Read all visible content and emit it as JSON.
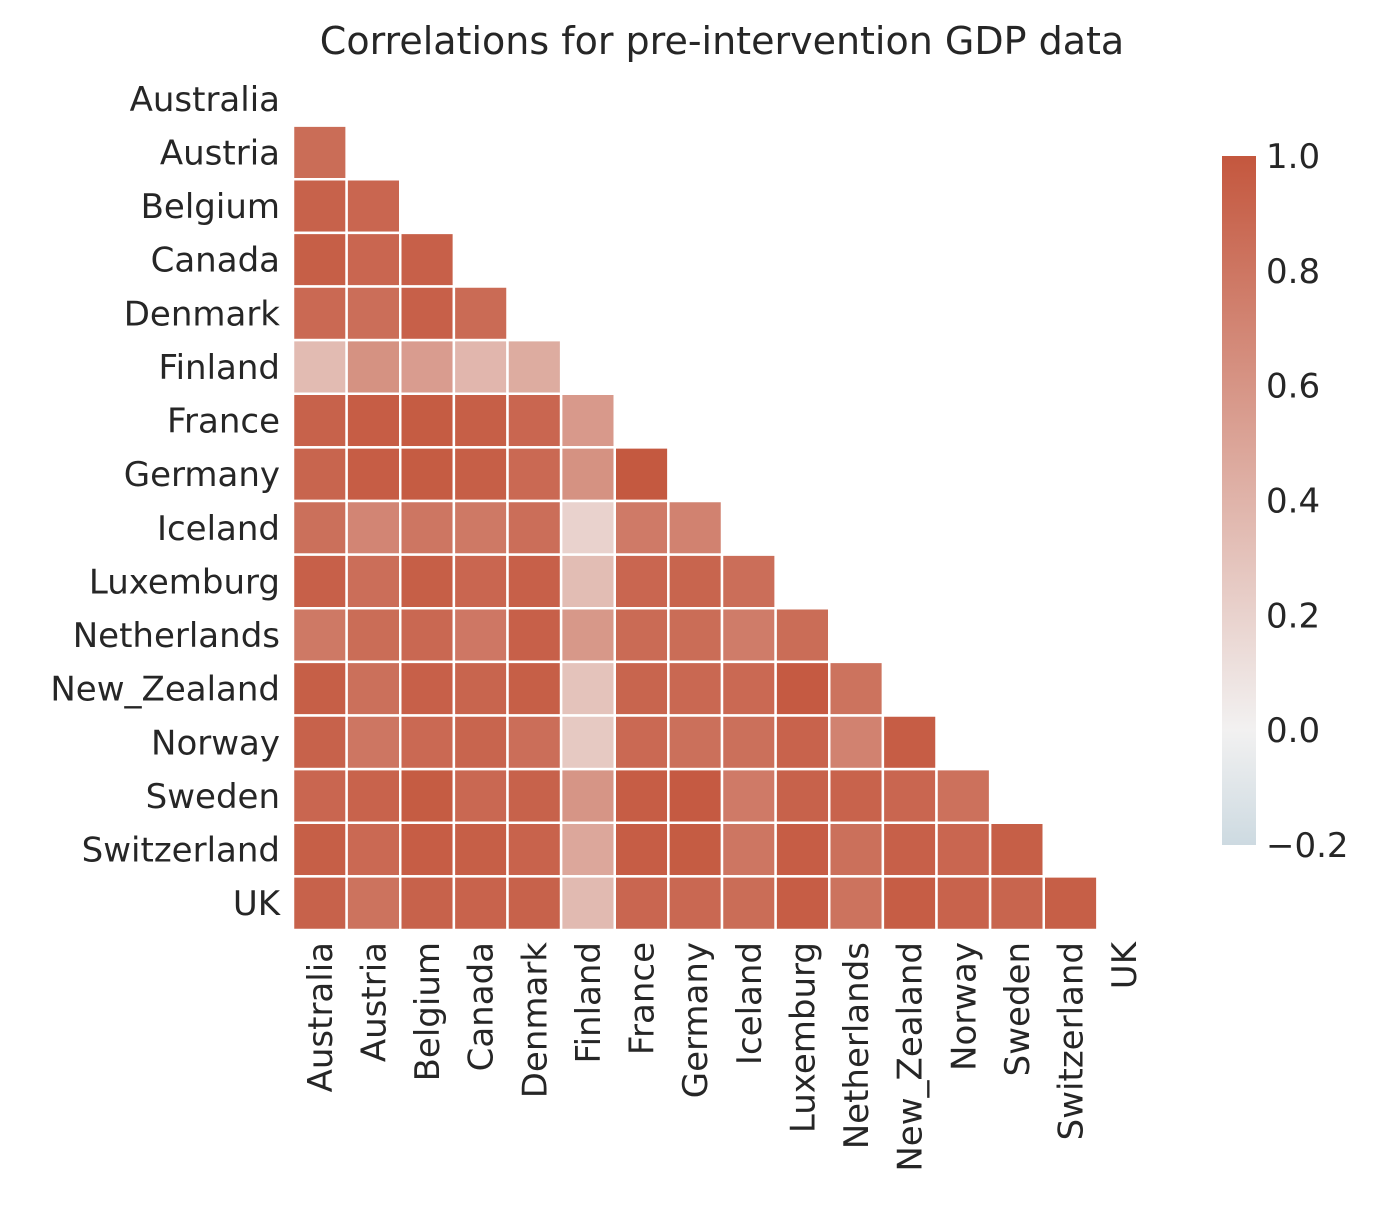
{
  "chart_data": {
    "type": "heatmap",
    "title": "Correlations for pre-intervention GDP data",
    "labels": [
      "Australia",
      "Austria",
      "Belgium",
      "Canada",
      "Denmark",
      "Finland",
      "France",
      "Germany",
      "Iceland",
      "Luxemburg",
      "Netherlands",
      "New_Zealand",
      "Norway",
      "Sweden",
      "Switzerland",
      "UK"
    ],
    "mask": "upper-triangle-including-diagonal",
    "lower_triangle": [
      [],
      [
        0.86
      ],
      [
        0.93,
        0.9
      ],
      [
        0.95,
        0.9,
        0.94
      ],
      [
        0.88,
        0.85,
        0.94,
        0.87
      ],
      [
        0.35,
        0.62,
        0.55,
        0.38,
        0.45
      ],
      [
        0.93,
        0.96,
        0.97,
        0.95,
        0.9,
        0.57
      ],
      [
        0.91,
        0.96,
        0.97,
        0.95,
        0.88,
        0.62,
        0.99
      ],
      [
        0.84,
        0.7,
        0.8,
        0.78,
        0.85,
        0.2,
        0.77,
        0.72
      ],
      [
        0.94,
        0.85,
        0.95,
        0.9,
        0.94,
        0.34,
        0.9,
        0.91,
        0.85
      ],
      [
        0.78,
        0.86,
        0.89,
        0.79,
        0.94,
        0.58,
        0.87,
        0.86,
        0.76,
        0.86
      ],
      [
        0.95,
        0.84,
        0.94,
        0.91,
        0.95,
        0.3,
        0.91,
        0.89,
        0.88,
        0.98,
        0.82
      ],
      [
        0.93,
        0.8,
        0.88,
        0.91,
        0.85,
        0.26,
        0.88,
        0.84,
        0.84,
        0.92,
        0.72,
        0.96
      ],
      [
        0.9,
        0.92,
        0.97,
        0.89,
        0.93,
        0.6,
        0.96,
        0.98,
        0.77,
        0.93,
        0.92,
        0.9,
        0.83
      ],
      [
        0.95,
        0.88,
        0.96,
        0.95,
        0.92,
        0.48,
        0.96,
        0.97,
        0.8,
        0.96,
        0.84,
        0.94,
        0.9,
        0.95
      ],
      [
        0.93,
        0.82,
        0.93,
        0.92,
        0.93,
        0.36,
        0.9,
        0.89,
        0.86,
        0.96,
        0.82,
        0.96,
        0.92,
        0.91,
        0.95
      ]
    ],
    "colorbar": {
      "range": [
        -0.2,
        1.0
      ],
      "center": 0.0,
      "ticks": [
        "−0.2",
        "0.0",
        "0.2",
        "0.4",
        "0.6",
        "0.8",
        "1.0"
      ],
      "tick_values": [
        -0.2,
        0.0,
        0.2,
        0.4,
        0.6,
        0.8,
        1.0
      ],
      "colors": {
        "negative": "#cddae1",
        "center": "#f2f1f1",
        "positive": "#c4573e"
      }
    },
    "legend": "right"
  }
}
